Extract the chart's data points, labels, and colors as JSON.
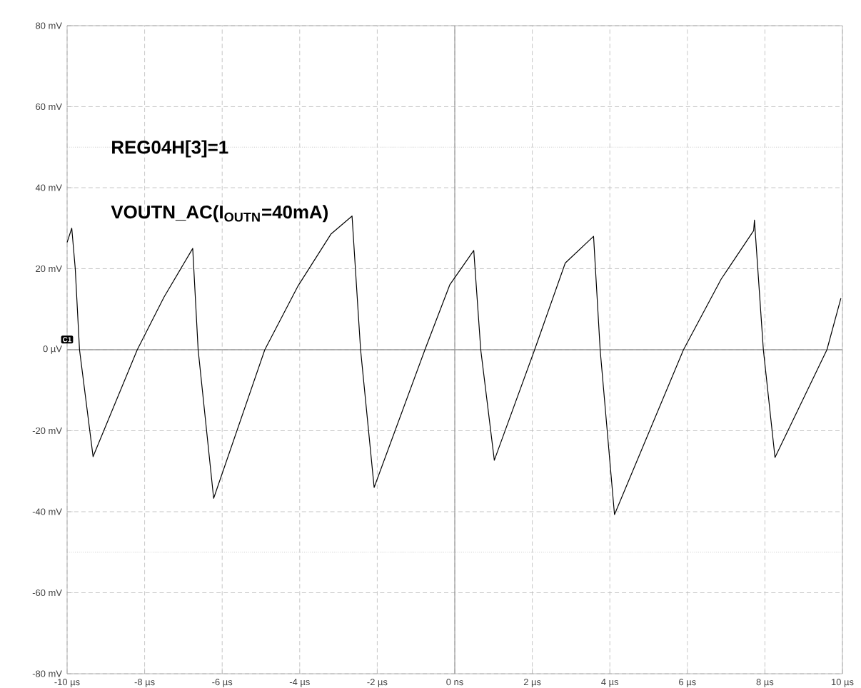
{
  "chart_data": {
    "type": "line",
    "annotations": [
      "REG04H[3]=1",
      "VOUTN_AC(I$_{OUTN}$=40mA)",
      "C1"
    ],
    "x": [
      -10,
      -9.88,
      -9.79,
      -9.68,
      -9.33,
      -8.19,
      -7.5,
      -6.76,
      -6.62,
      -6.22,
      -4.9,
      -4.04,
      -3.19,
      -2.65,
      -2.43,
      -2.08,
      -0.77,
      -0.13,
      0.49,
      0.67,
      1.02,
      2.06,
      2.85,
      3.58,
      3.75,
      4.12,
      5.9,
      6.87,
      7.71,
      7.73,
      7.96,
      8.26,
      9.6,
      9.96
    ],
    "series": [
      {
        "color": "#000000",
        "values": [
          26.5,
          30,
          20,
          0,
          -26.4,
          0,
          13,
          25,
          0,
          -36.7,
          0,
          15.8,
          28.6,
          33,
          0,
          -34,
          0,
          16,
          24.5,
          0,
          -27.3,
          0,
          21.4,
          28,
          0,
          -40.7,
          0,
          17.4,
          29.4,
          32,
          0,
          -26.6,
          0,
          12.7
        ]
      }
    ],
    "xlim": [
      -10,
      10
    ],
    "ylim": [
      -80,
      80
    ],
    "xticks": [
      {
        "value": -10,
        "label": "-10 µs"
      },
      {
        "value": -8,
        "label": "-8 µs"
      },
      {
        "value": -6,
        "label": "-6 µs"
      },
      {
        "value": -4,
        "label": "-4 µs"
      },
      {
        "value": -2,
        "label": "-2 µs"
      },
      {
        "value": 0,
        "label": "0 ns"
      },
      {
        "value": 2,
        "label": "2 µs"
      },
      {
        "value": 4,
        "label": "4 µs"
      },
      {
        "value": 6,
        "label": "6 µs"
      },
      {
        "value": 8,
        "label": "8 µs"
      },
      {
        "value": 10,
        "label": "10 µs"
      }
    ],
    "yticks": [
      {
        "value": -80,
        "label": "-80 mV"
      },
      {
        "value": -60,
        "label": "-60 mV"
      },
      {
        "value": -40,
        "label": "-40 mV"
      },
      {
        "value": -20,
        "label": "-20 mV"
      },
      {
        "value": 0,
        "label": "0 µV"
      },
      {
        "value": 20,
        "label": "20 mV"
      },
      {
        "value": 40,
        "label": "40 mV"
      },
      {
        "value": 60,
        "label": "60 mV"
      },
      {
        "value": 80,
        "label": "80 mV"
      }
    ],
    "ref_lines": [
      {
        "axis": "y",
        "value": 50,
        "color": "#b0b0b0",
        "line_style": "dotted"
      },
      {
        "axis": "y",
        "value": -50,
        "color": "#b0b0b0",
        "line_style": "dotted"
      }
    ],
    "grid": true,
    "marker": "none",
    "line_style": "solid"
  }
}
